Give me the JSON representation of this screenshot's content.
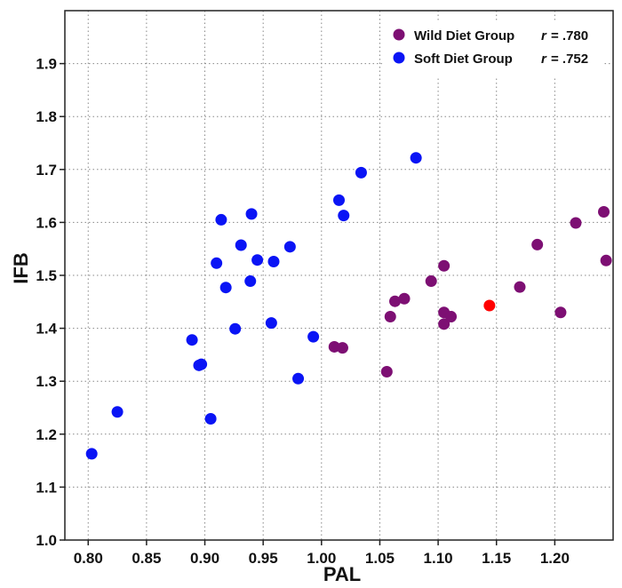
{
  "chart_data": {
    "type": "scatter",
    "xlabel": "PAL",
    "ylabel": "IFB",
    "xlim": [
      0.78,
      1.25
    ],
    "ylim": [
      1.0,
      2.0
    ],
    "xticks": [
      "0.80",
      "0.85",
      "0.90",
      "0.95",
      "1.00",
      "1.05",
      "1.10",
      "1.15",
      "1.20"
    ],
    "yticks": [
      "1.0",
      "1.1",
      "1.2",
      "1.3",
      "1.4",
      "1.5",
      "1.6",
      "1.7",
      "1.8",
      "1.9"
    ],
    "grid": true,
    "legend_position": "top-right",
    "legend": [
      {
        "label": "Wild Diet Group",
        "r_label": "r",
        "r_value": "= .780",
        "color": "#7d0f73"
      },
      {
        "label": "Soft Diet Group",
        "r_label": "r",
        "r_value": "= .752",
        "color": "#0a14f5"
      }
    ],
    "series": [
      {
        "name": "Wild Diet Group",
        "color": "#7d0f73",
        "points": [
          [
            1.011,
            1.365
          ],
          [
            1.018,
            1.363
          ],
          [
            1.056,
            1.318
          ],
          [
            1.059,
            1.422
          ],
          [
            1.063,
            1.451
          ],
          [
            1.071,
            1.456
          ],
          [
            1.094,
            1.489
          ],
          [
            1.105,
            1.518
          ],
          [
            1.105,
            1.43
          ],
          [
            1.105,
            1.408
          ],
          [
            1.111,
            1.422
          ],
          [
            1.17,
            1.478
          ],
          [
            1.185,
            1.558
          ],
          [
            1.205,
            1.43
          ],
          [
            1.218,
            1.599
          ],
          [
            1.242,
            1.62
          ],
          [
            1.244,
            1.528
          ]
        ]
      },
      {
        "name": "Soft Diet Group",
        "color": "#0a14f5",
        "points": [
          [
            0.803,
            1.163
          ],
          [
            0.825,
            1.242
          ],
          [
            0.889,
            1.378
          ],
          [
            0.895,
            1.33
          ],
          [
            0.897,
            1.332
          ],
          [
            0.905,
            1.229
          ],
          [
            0.91,
            1.523
          ],
          [
            0.914,
            1.605
          ],
          [
            0.918,
            1.477
          ],
          [
            0.926,
            1.399
          ],
          [
            0.931,
            1.557
          ],
          [
            0.939,
            1.489
          ],
          [
            0.94,
            1.616
          ],
          [
            0.945,
            1.529
          ],
          [
            0.957,
            1.41
          ],
          [
            0.959,
            1.526
          ],
          [
            0.973,
            1.554
          ],
          [
            0.98,
            1.305
          ],
          [
            0.993,
            1.384
          ],
          [
            1.015,
            1.642
          ],
          [
            1.019,
            1.613
          ],
          [
            1.034,
            1.694
          ],
          [
            1.081,
            1.722
          ]
        ]
      },
      {
        "color": "#ff0000",
        "points": [
          [
            1.144,
            1.443
          ]
        ]
      }
    ]
  }
}
